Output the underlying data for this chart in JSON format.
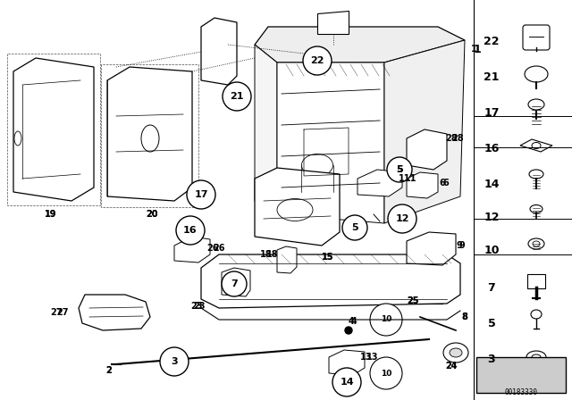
{
  "bg_color": "#ffffff",
  "fig_width": 6.4,
  "fig_height": 4.48,
  "dpi": 100,
  "watermark": "00183330"
}
